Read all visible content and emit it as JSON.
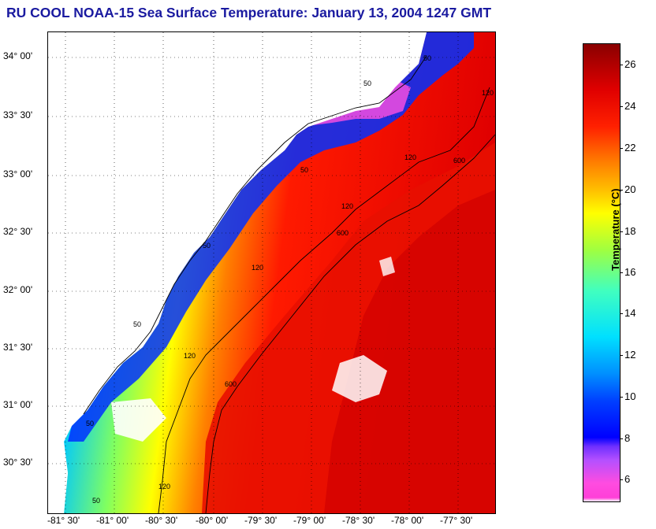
{
  "title": "RU COOL  NOAA-15  Sea Surface Temperature:  January 13, 2004 1247 GMT",
  "map": {
    "lat_labels": [
      "34° 00'",
      "33° 30'",
      "33° 00'",
      "32° 30'",
      "32° 00'",
      "31° 30'",
      "31° 00'",
      "30° 30'"
    ],
    "lon_labels": [
      "-81° 30'",
      "-81° 00'",
      "-80° 30'",
      "-80° 00'",
      "-79° 30'",
      "-79° 00'",
      "-78° 30'",
      "-78° 00'",
      "-77° 30'"
    ],
    "contour_labels": [
      "50",
      "50",
      "50",
      "50",
      "50",
      "50",
      "50",
      "120",
      "120",
      "120",
      "120",
      "120",
      "120",
      "600",
      "600",
      "600"
    ]
  },
  "colorbar": {
    "title": "Temperature (°C)",
    "ticks": [
      "26",
      "24",
      "22",
      "20",
      "18",
      "16",
      "14",
      "12",
      "10",
      "8",
      "6"
    ],
    "range": [
      5,
      27
    ],
    "colors": {
      "low": "#ff3fd8",
      "cold": "#0000ff",
      "cyan": "#00e0ff",
      "yellow": "#ffff00",
      "red": "#e00000",
      "high": "#8a0000"
    }
  }
}
